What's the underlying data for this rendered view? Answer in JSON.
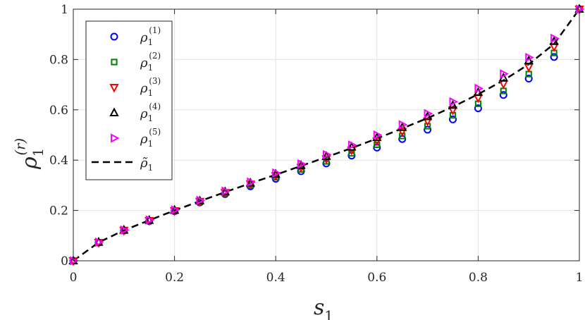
{
  "chart_data": {
    "type": "scatter",
    "x": [
      0,
      0.05,
      0.1,
      0.15,
      0.2,
      0.25,
      0.3,
      0.35,
      0.4,
      0.45,
      0.5,
      0.55,
      0.6,
      0.65,
      0.7,
      0.75,
      0.8,
      0.85,
      0.9,
      0.95,
      1.0
    ],
    "xlim": [
      0,
      1
    ],
    "ylim": [
      0,
      1
    ],
    "xticks": [
      "0",
      "0.2",
      "0.4",
      "0.6",
      "0.8",
      "1"
    ],
    "yticks": [
      "0",
      "0.2",
      "0.4",
      "0.6",
      "0.8",
      "1"
    ],
    "xlabel": {
      "base": "s",
      "sub": "1"
    },
    "ylabel": {
      "base": "ρ",
      "sub": "1",
      "sup": "(r)"
    },
    "grid": true,
    "legend_position": "top-left",
    "series": [
      {
        "name": "ρ1(1)",
        "base": "ρ",
        "sub": "1",
        "sup": "(1)",
        "marker": "circle",
        "color": "#0000ff",
        "values": [
          0,
          0.072,
          0.12,
          0.158,
          0.197,
          0.232,
          0.265,
          0.296,
          0.326,
          0.356,
          0.387,
          0.418,
          0.45,
          0.484,
          0.521,
          0.562,
          0.606,
          0.659,
          0.724,
          0.81,
          1.0
        ]
      },
      {
        "name": "ρ1(2)",
        "base": "ρ",
        "sub": "1",
        "sup": "(2)",
        "marker": "square",
        "color": "#008000",
        "values": [
          0,
          0.072,
          0.12,
          0.159,
          0.198,
          0.234,
          0.268,
          0.3,
          0.332,
          0.363,
          0.395,
          0.427,
          0.461,
          0.496,
          0.535,
          0.578,
          0.624,
          0.675,
          0.742,
          0.826,
          1.0
        ]
      },
      {
        "name": "ρ1(3)",
        "base": "ρ",
        "sub": "1",
        "sup": "(3)",
        "marker": "triangle-down",
        "color": "#ff0000",
        "values": [
          0,
          0.073,
          0.121,
          0.16,
          0.199,
          0.236,
          0.271,
          0.305,
          0.338,
          0.371,
          0.405,
          0.44,
          0.476,
          0.514,
          0.555,
          0.599,
          0.648,
          0.703,
          0.77,
          0.851,
          1.0
        ]
      },
      {
        "name": "ρ1(4)",
        "base": "ρ",
        "sub": "1",
        "sup": "(4)",
        "marker": "triangle-up",
        "color": "#000000",
        "values": [
          0,
          0.074,
          0.122,
          0.161,
          0.201,
          0.238,
          0.274,
          0.309,
          0.344,
          0.379,
          0.415,
          0.452,
          0.49,
          0.53,
          0.573,
          0.618,
          0.669,
          0.727,
          0.795,
          0.872,
          1.0
        ]
      },
      {
        "name": "ρ1(5)",
        "base": "ρ",
        "sub": "1",
        "sup": "(5)",
        "marker": "triangle-right",
        "color": "#ff00ff",
        "values": [
          0,
          0.074,
          0.122,
          0.162,
          0.202,
          0.24,
          0.277,
          0.313,
          0.349,
          0.385,
          0.422,
          0.46,
          0.5,
          0.541,
          0.585,
          0.632,
          0.685,
          0.743,
          0.808,
          0.884,
          1.0
        ]
      }
    ],
    "reference_line": {
      "name": "ρ̃1",
      "base": "ρ̃",
      "sub": "1",
      "style": "dashed",
      "color": "#000000",
      "x": [
        0,
        0.05,
        0.1,
        0.15,
        0.2,
        0.25,
        0.3,
        0.35,
        0.4,
        0.45,
        0.5,
        0.55,
        0.6,
        0.65,
        0.7,
        0.75,
        0.8,
        0.85,
        0.9,
        0.95,
        1.0
      ],
      "values": [
        0,
        0.073,
        0.121,
        0.161,
        0.2,
        0.237,
        0.273,
        0.308,
        0.342,
        0.377,
        0.412,
        0.448,
        0.486,
        0.526,
        0.567,
        0.612,
        0.662,
        0.717,
        0.781,
        0.862,
        1.0
      ]
    }
  }
}
